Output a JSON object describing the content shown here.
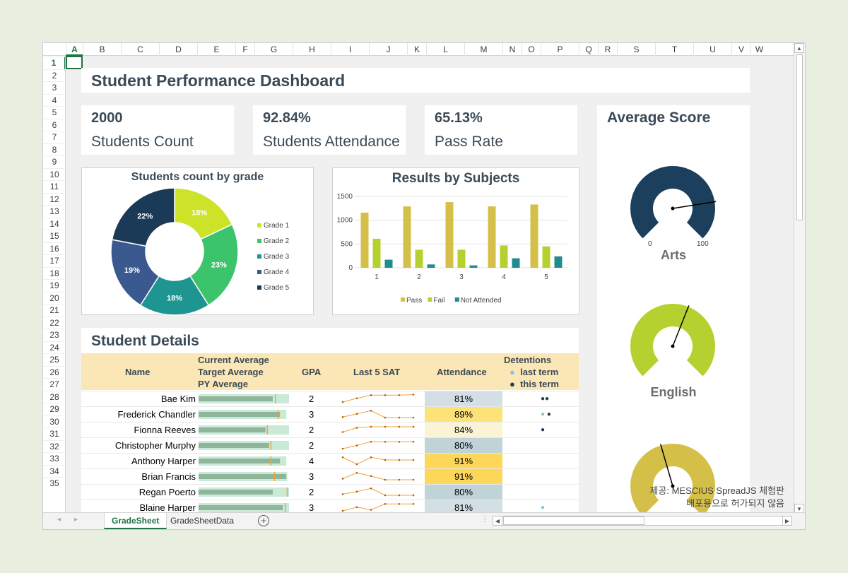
{
  "columns": [
    "A",
    "B",
    "C",
    "D",
    "E",
    "F",
    "G",
    "H",
    "I",
    "J",
    "K",
    "L",
    "M",
    "N",
    "O",
    "P",
    "Q",
    "R",
    "S",
    "T",
    "U",
    "V",
    "W"
  ],
  "rows": [
    "1",
    "2",
    "3",
    "4",
    "5",
    "6",
    "7",
    "8",
    "9",
    "10",
    "11",
    "12",
    "13",
    "14",
    "15",
    "16",
    "17",
    "18",
    "19",
    "20",
    "21",
    "22",
    "23",
    "24",
    "25",
    "26",
    "27",
    "28",
    "29",
    "30",
    "31",
    "32",
    "33",
    "34",
    "35"
  ],
  "dashboard": {
    "title": "Student Performance Dashboard",
    "kpis": [
      {
        "value": "2000",
        "label": "Students Count"
      },
      {
        "value": "92.84%",
        "label": "Students Attendance"
      },
      {
        "value": "65.13%",
        "label": "Pass Rate"
      }
    ]
  },
  "donut_chart": {
    "chart_data": {
      "type": "pie",
      "title": "Students count by grade",
      "categories": [
        "Grade 1",
        "Grade 2",
        "Grade 3",
        "Grade 4",
        "Grade 5"
      ],
      "values": [
        18,
        23,
        18,
        19,
        22
      ],
      "labels": [
        "18%",
        "23%",
        "18%",
        "19%",
        "22%"
      ],
      "colors": [
        "#cde32a",
        "#3cc46c",
        "#1f9591",
        "#3a5a8f",
        "#1b3a57"
      ],
      "legend": "right"
    }
  },
  "bar_chart": {
    "chart_data": {
      "type": "bar",
      "title": "Results by Subjects",
      "categories": [
        "1",
        "2",
        "3",
        "4",
        "5"
      ],
      "series": [
        {
          "name": "Pass",
          "values": [
            1160,
            1290,
            1380,
            1290,
            1330
          ],
          "color": "#d4c048"
        },
        {
          "name": "Fail",
          "values": [
            610,
            380,
            380,
            470,
            450
          ],
          "color": "#b5d12f"
        },
        {
          "name": "Not Attended",
          "values": [
            170,
            70,
            50,
            200,
            240
          ],
          "color": "#1f8c8f"
        }
      ],
      "yticks": [
        "0",
        "500",
        "1000",
        "1500"
      ],
      "ylim": [
        0,
        1500
      ],
      "legend": "bottom"
    }
  },
  "average_score": {
    "title": "Average Score",
    "gauges": [
      {
        "subject": "Arts",
        "color": "#1b3f5c",
        "min": "0",
        "max": "100"
      },
      {
        "subject": "English",
        "color": "#b5d12f"
      },
      {
        "subject": "",
        "color": "#d4c048"
      }
    ]
  },
  "details": {
    "title": "Student Details",
    "headers": {
      "name": "Name",
      "avg1": "Current Average",
      "avg2": "Target Average",
      "avg3": "PY Average",
      "gpa": "GPA",
      "sat": "Last 5 SAT",
      "attendance": "Attendance",
      "detentions": "Detentions",
      "last_term": "last term",
      "this_term": "this term"
    },
    "rows": [
      {
        "name": "Bae Kim",
        "gpa": "2",
        "attendance": "81%",
        "att_color": "#d3dfe5",
        "cur": 0.82,
        "tgt": 0.85,
        "py": 1.0,
        "sat": [
          0.2,
          0.55,
          0.85,
          0.85,
          0.85,
          0.9
        ],
        "last": 0,
        "this": 2
      },
      {
        "name": "Frederick Chandler",
        "gpa": "3",
        "attendance": "89%",
        "att_color": "#fde27a",
        "cur": 0.9,
        "tgt": 0.88,
        "py": 0.97,
        "sat": [
          0.25,
          0.55,
          0.85,
          0.2,
          0.2,
          0.2
        ],
        "last": 1,
        "this": 1
      },
      {
        "name": "Fionna Reeves",
        "gpa": "2",
        "attendance": "84%",
        "att_color": "#fbf3d6",
        "cur": 0.74,
        "tgt": 0.76,
        "py": 1.0,
        "sat": [
          0.3,
          0.7,
          0.8,
          0.8,
          0.8,
          0.8
        ],
        "last": 0,
        "this": 1
      },
      {
        "name": "Christopher Murphy",
        "gpa": "2",
        "attendance": "80%",
        "att_color": "#bfd3d9",
        "cur": 0.78,
        "tgt": 0.8,
        "py": 1.0,
        "sat": [
          0.2,
          0.5,
          0.85,
          0.85,
          0.85,
          0.85
        ],
        "last": 0,
        "this": 0
      },
      {
        "name": "Anthony Harper",
        "gpa": "4",
        "attendance": "91%",
        "att_color": "#fdd75a",
        "cur": 0.9,
        "tgt": 0.8,
        "py": 0.97,
        "sat": [
          0.85,
          0.2,
          0.85,
          0.6,
          0.6,
          0.6
        ],
        "last": 0,
        "this": 0
      },
      {
        "name": "Brian Francis",
        "gpa": "3",
        "attendance": "91%",
        "att_color": "#fdd75a",
        "cur": 0.97,
        "tgt": 0.84,
        "py": 0.98,
        "sat": [
          0.3,
          0.85,
          0.55,
          0.2,
          0.2,
          0.2
        ],
        "last": 0,
        "this": 0
      },
      {
        "name": "Regan Poerto",
        "gpa": "2",
        "attendance": "80%",
        "att_color": "#bfd3d9",
        "cur": 0.82,
        "tgt": 0.98,
        "py": 1.0,
        "sat": [
          0.3,
          0.55,
          0.85,
          0.2,
          0.2,
          0.2
        ],
        "last": 0,
        "this": 0
      },
      {
        "name": "Blaine Harper",
        "gpa": "3",
        "attendance": "81%",
        "att_color": "#d3dfe5",
        "cur": 0.93,
        "tgt": 0.96,
        "py": 1.0,
        "sat": [
          0.2,
          0.55,
          0.3,
          0.85,
          0.85,
          0.85
        ],
        "last": 1,
        "this": 0
      }
    ]
  },
  "tabs": [
    "GradeSheet",
    "GradeSheetData"
  ],
  "active_tab": "GradeSheet",
  "watermark": [
    "제공: MESCIUS SpreadJS 체험판",
    "배포용으로 허가되지 않음"
  ]
}
